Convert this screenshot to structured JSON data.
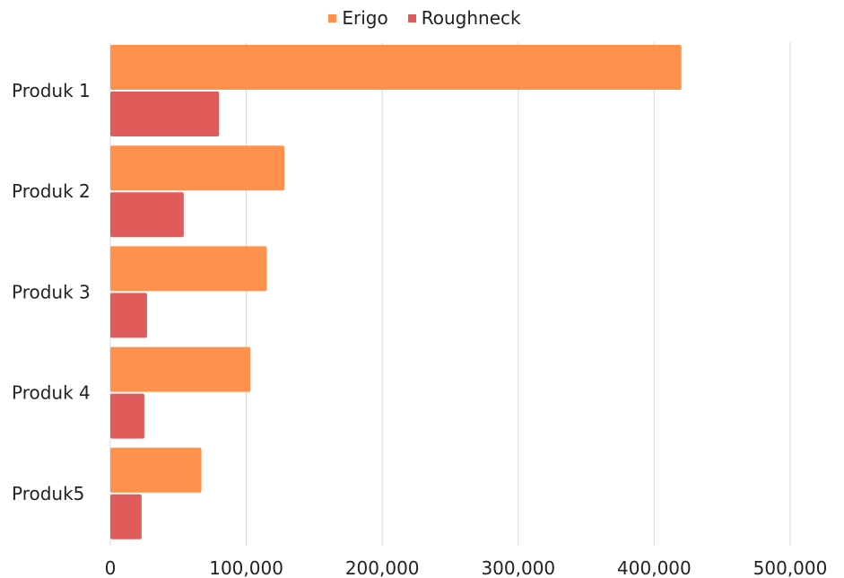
{
  "chart_data": {
    "type": "bar",
    "orientation": "horizontal",
    "categories": [
      "Produk 1",
      "Produk 2",
      "Produk 3",
      "Produk 4",
      "Produk5"
    ],
    "series": [
      {
        "name": "Erigo",
        "color": "#ff914d",
        "values": [
          420000,
          128000,
          115000,
          103000,
          67000
        ]
      },
      {
        "name": "Roughneck",
        "color": "#e05c5a",
        "values": [
          80000,
          54000,
          27000,
          25000,
          23000
        ]
      }
    ],
    "xlim": [
      0,
      500000
    ],
    "xticks": [
      0,
      100000,
      200000,
      300000,
      400000,
      500000
    ],
    "xtick_labels": [
      "0",
      "100,000",
      "200,000",
      "300,000",
      "400,000",
      "500,000"
    ],
    "grid": true,
    "legend_position": "top-center"
  }
}
